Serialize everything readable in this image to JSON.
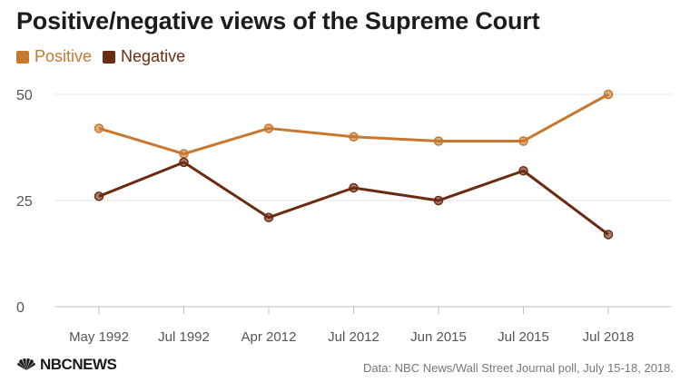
{
  "chart_data": {
    "type": "line",
    "title": "Positive/negative views of the Supreme Court",
    "categories": [
      "May 1992",
      "Jul 1992",
      "Apr 2012",
      "Jul 2012",
      "Jun 2015",
      "Jul 2015",
      "Jul 2018"
    ],
    "series": [
      {
        "name": "Positive",
        "values": [
          42,
          36,
          42,
          40,
          39,
          39,
          50
        ],
        "color": "#c8782e"
      },
      {
        "name": "Negative",
        "values": [
          26,
          34,
          21,
          28,
          25,
          32,
          17
        ],
        "color": "#6b2b10"
      }
    ],
    "ylim": [
      0,
      50
    ],
    "yticks": [
      "0",
      "25",
      "50"
    ],
    "grid": true,
    "legend_position": "top-left"
  },
  "footer": {
    "logo_text": "NBCNEWS",
    "source": "Data: NBC News/Wall Street Journal poll, July 15-18, 2018."
  },
  "icons": {
    "logo": "nbc-peacock-icon"
  }
}
